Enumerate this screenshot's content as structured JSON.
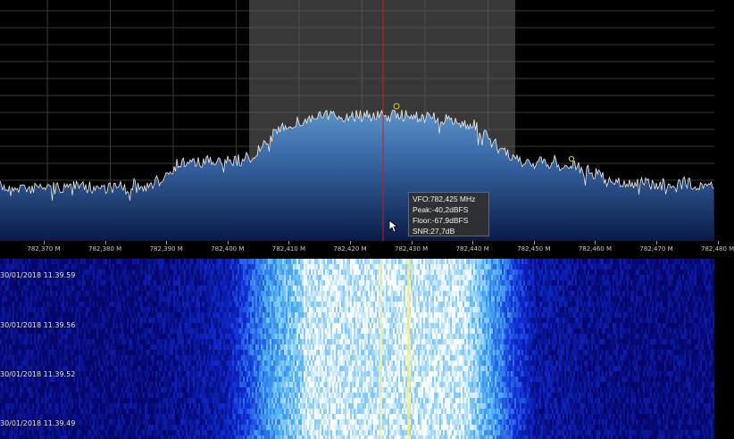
{
  "frequency_axis": {
    "labels": [
      "782,370 M",
      "782,380 M",
      "782,390 M",
      "782,400 M",
      "782,410 M",
      "782,420 M",
      "782,430 M",
      "782,440 M",
      "782,450 M",
      "782,460 M",
      "782,470 M",
      "782,480 M"
    ]
  },
  "vfo_tooltip": {
    "vfo": "VFO:782,425 MHz",
    "peak": "Peak:-40,2dBFS",
    "floor": "Floor:-67,9dBFS",
    "snr": "SNR:27,7dB"
  },
  "waterfall": {
    "timestamps": [
      "30/01/2018 11.39.59",
      "30/01/2018 11.39.56",
      "30/01/2018 11.39.52",
      "30/01/2018 11.39.49"
    ]
  },
  "colors": {
    "vfo_line": "#d01818",
    "marker": "#d8d030",
    "spectrum_fill_top": "#5d94c8",
    "spectrum_fill_bottom": "#0a1c48",
    "waterfall_bg": "#06066a"
  }
}
